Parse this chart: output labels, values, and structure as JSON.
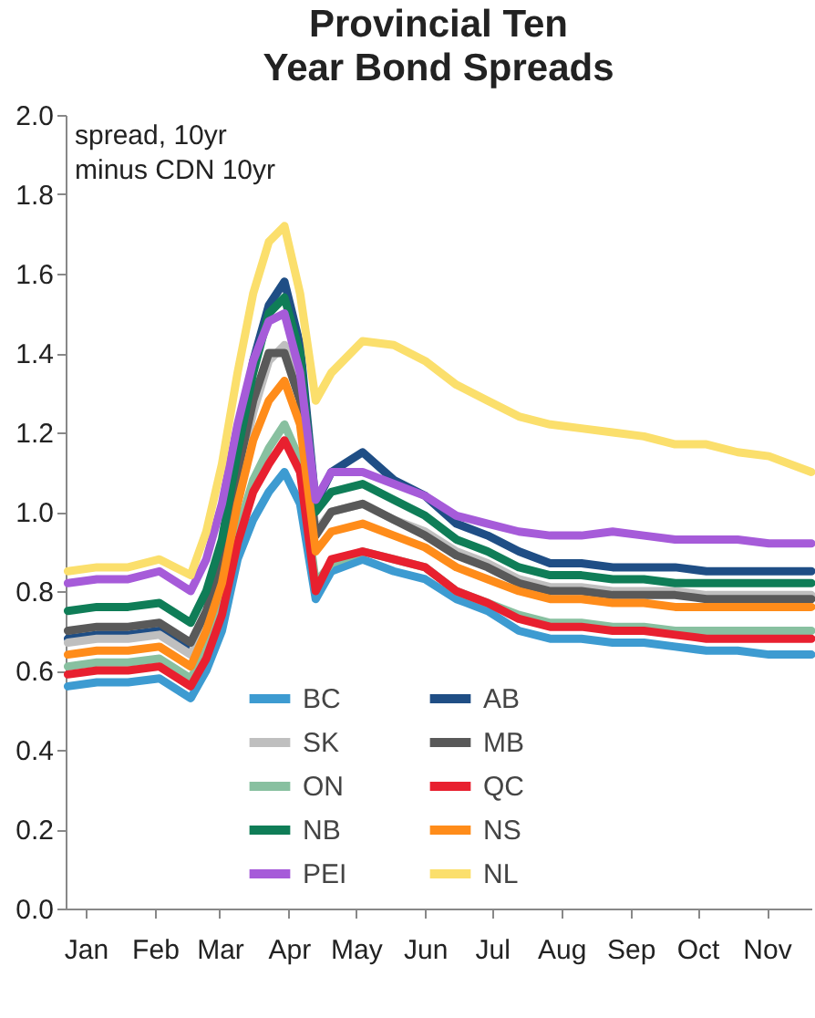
{
  "chart_data": {
    "type": "line",
    "title": "Provincial Ten\nYear Bond Spreads",
    "annotations": [
      "spread, 10yr\nminus CDN 10yr"
    ],
    "x": [
      "--01-02",
      "--01-15",
      "--01-29",
      "--02-12",
      "--02-26",
      "--03-04",
      "--03-11",
      "--03-18",
      "--03-25",
      "--04-01",
      "--04-08",
      "--04-15",
      "--04-22",
      "--04-29",
      "--05-13",
      "--05-27",
      "--06-10",
      "--06-24",
      "--07-08",
      "--07-22",
      "--08-05",
      "--08-19",
      "--09-02",
      "--09-16",
      "--09-30",
      "--10-14",
      "--10-28",
      "--11-11",
      "--11-30"
    ],
    "series": [
      {
        "name": "BC",
        "color": "#3d9bd1",
        "values": [
          0.56,
          0.57,
          0.57,
          0.58,
          0.53,
          0.6,
          0.7,
          0.88,
          0.98,
          1.05,
          1.1,
          1.02,
          0.78,
          0.85,
          0.88,
          0.85,
          0.83,
          0.78,
          0.75,
          0.7,
          0.68,
          0.68,
          0.67,
          0.67,
          0.66,
          0.65,
          0.65,
          0.64,
          0.64
        ]
      },
      {
        "name": "AB",
        "color": "#1f4e85",
        "values": [
          0.68,
          0.69,
          0.69,
          0.7,
          0.65,
          0.74,
          0.88,
          1.15,
          1.38,
          1.52,
          1.58,
          1.42,
          1.02,
          1.1,
          1.15,
          1.08,
          1.04,
          0.97,
          0.94,
          0.9,
          0.87,
          0.87,
          0.86,
          0.86,
          0.86,
          0.85,
          0.85,
          0.85,
          0.85
        ]
      },
      {
        "name": "SK",
        "color": "#bfbfbf",
        "values": [
          0.67,
          0.68,
          0.68,
          0.69,
          0.64,
          0.72,
          0.85,
          1.08,
          1.25,
          1.38,
          1.42,
          1.3,
          0.95,
          1.0,
          1.02,
          0.98,
          0.95,
          0.9,
          0.87,
          0.83,
          0.81,
          0.81,
          0.8,
          0.8,
          0.8,
          0.79,
          0.79,
          0.79,
          0.79
        ]
      },
      {
        "name": "MB",
        "color": "#595959",
        "values": [
          0.7,
          0.71,
          0.71,
          0.72,
          0.67,
          0.75,
          0.88,
          1.1,
          1.28,
          1.4,
          1.4,
          1.28,
          0.94,
          1.0,
          1.02,
          0.98,
          0.94,
          0.89,
          0.86,
          0.82,
          0.8,
          0.8,
          0.79,
          0.79,
          0.79,
          0.78,
          0.78,
          0.78,
          0.78
        ]
      },
      {
        "name": "ON",
        "color": "#88c0a0",
        "values": [
          0.61,
          0.62,
          0.62,
          0.63,
          0.58,
          0.65,
          0.76,
          0.95,
          1.08,
          1.16,
          1.22,
          1.13,
          0.82,
          0.87,
          0.9,
          0.88,
          0.86,
          0.8,
          0.77,
          0.74,
          0.72,
          0.72,
          0.71,
          0.71,
          0.7,
          0.7,
          0.7,
          0.7,
          0.7
        ]
      },
      {
        "name": "QC",
        "color": "#e8202f",
        "values": [
          0.59,
          0.6,
          0.6,
          0.61,
          0.56,
          0.63,
          0.74,
          0.92,
          1.05,
          1.12,
          1.18,
          1.1,
          0.8,
          0.88,
          0.9,
          0.88,
          0.86,
          0.8,
          0.77,
          0.73,
          0.71,
          0.71,
          0.7,
          0.7,
          0.69,
          0.68,
          0.68,
          0.68,
          0.68
        ]
      },
      {
        "name": "NB",
        "color": "#0f7d57",
        "values": [
          0.75,
          0.76,
          0.76,
          0.77,
          0.72,
          0.8,
          0.93,
          1.15,
          1.35,
          1.5,
          1.54,
          1.4,
          1.0,
          1.05,
          1.07,
          1.03,
          0.99,
          0.93,
          0.9,
          0.86,
          0.84,
          0.84,
          0.83,
          0.83,
          0.82,
          0.82,
          0.82,
          0.82,
          0.82
        ]
      },
      {
        "name": "NS",
        "color": "#ff8c1a",
        "values": [
          0.64,
          0.65,
          0.65,
          0.66,
          0.61,
          0.7,
          0.82,
          1.02,
          1.18,
          1.28,
          1.33,
          1.22,
          0.9,
          0.95,
          0.97,
          0.94,
          0.91,
          0.86,
          0.83,
          0.8,
          0.78,
          0.78,
          0.77,
          0.77,
          0.76,
          0.76,
          0.76,
          0.76,
          0.76
        ]
      },
      {
        "name": "PEI",
        "color": "#a65bd9",
        "values": [
          0.82,
          0.83,
          0.83,
          0.85,
          0.8,
          0.88,
          1.02,
          1.22,
          1.38,
          1.48,
          1.5,
          1.35,
          1.03,
          1.1,
          1.1,
          1.07,
          1.04,
          0.99,
          0.97,
          0.95,
          0.94,
          0.94,
          0.95,
          0.94,
          0.93,
          0.93,
          0.93,
          0.92,
          0.92
        ]
      },
      {
        "name": "NL",
        "color": "#fbdf6c",
        "values": [
          0.85,
          0.86,
          0.86,
          0.88,
          0.84,
          0.95,
          1.12,
          1.35,
          1.55,
          1.68,
          1.72,
          1.55,
          1.28,
          1.35,
          1.43,
          1.42,
          1.38,
          1.32,
          1.28,
          1.24,
          1.22,
          1.21,
          1.2,
          1.19,
          1.17,
          1.17,
          1.15,
          1.14,
          1.1
        ]
      }
    ],
    "xlim": [
      "--01-01",
      "--11-30"
    ],
    "xticks": [
      {
        "value": "--01-10",
        "label": "Jan"
      },
      {
        "value": "--02-10",
        "label": "Feb"
      },
      {
        "value": "--03-10",
        "label": "Mar"
      },
      {
        "value": "--04-10",
        "label": "Apr"
      },
      {
        "value": "--05-10",
        "label": "May"
      },
      {
        "value": "--06-10",
        "label": "Jun"
      },
      {
        "value": "--07-10",
        "label": "Jul"
      },
      {
        "value": "--08-10",
        "label": "Aug"
      },
      {
        "value": "--09-10",
        "label": "Sep"
      },
      {
        "value": "--10-10",
        "label": "Oct"
      },
      {
        "value": "--11-10",
        "label": "Nov"
      }
    ],
    "ylim": [
      0,
      2
    ],
    "yticks": [
      {
        "value": 0,
        "label": "0.0"
      },
      {
        "value": 0.2,
        "label": "0.2"
      },
      {
        "value": 0.4,
        "label": "0.4"
      },
      {
        "value": 0.6,
        "label": "0.6"
      },
      {
        "value": 0.8,
        "label": "0.8"
      },
      {
        "value": 1,
        "label": "1.0"
      },
      {
        "value": 1.2,
        "label": "1.2"
      },
      {
        "value": 1.4,
        "label": "1.4"
      },
      {
        "value": 1.6,
        "label": "1.6"
      },
      {
        "value": 1.8,
        "label": "1.8"
      },
      {
        "value": 2,
        "label": "2.0"
      }
    ],
    "grid": false,
    "legend": "bottom",
    "line_style": "solid",
    "marker": "none"
  }
}
